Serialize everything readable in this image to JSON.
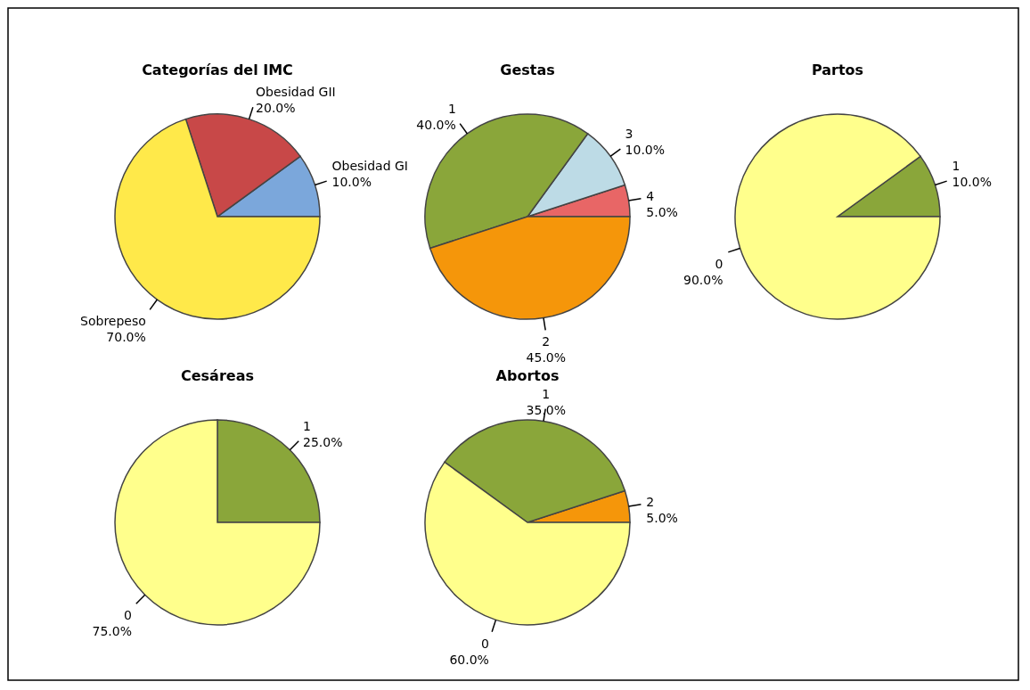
{
  "chart_data": [
    {
      "type": "pie",
      "title": "Categorías del IMC",
      "categories": [
        "Obesidad GI",
        "Obesidad GII",
        "Sobrepeso"
      ],
      "values": [
        10,
        20,
        70
      ],
      "value_labels": [
        "10.0%",
        "20.0%",
        "70.0%"
      ],
      "colors": [
        "#7ba7db",
        "#c84848",
        "#ffe94a"
      ]
    },
    {
      "type": "pie",
      "title": "Gestas",
      "categories": [
        "4",
        "3",
        "1",
        "2"
      ],
      "values": [
        5,
        10,
        40,
        45
      ],
      "value_labels": [
        "5.0%",
        "10.0%",
        "40.0%",
        "45.0%"
      ],
      "colors": [
        "#e86666",
        "#bddbe6",
        "#8aa63a",
        "#f5960a"
      ]
    },
    {
      "type": "pie",
      "title": "Partos",
      "categories": [
        "1",
        "0"
      ],
      "values": [
        10,
        90
      ],
      "value_labels": [
        "10.0%",
        "90.0%"
      ],
      "colors": [
        "#8aa63a",
        "#ffff8c"
      ]
    },
    {
      "type": "pie",
      "title": "Cesáreas",
      "categories": [
        "1",
        "0"
      ],
      "values": [
        25,
        75
      ],
      "value_labels": [
        "25.0%",
        "75.0%"
      ],
      "colors": [
        "#8aa63a",
        "#ffff8c"
      ]
    },
    {
      "type": "pie",
      "title": "Abortos",
      "categories": [
        "2",
        "1",
        "0"
      ],
      "values": [
        5,
        35,
        60
      ],
      "value_labels": [
        "5.0%",
        "35.0%",
        "60.0%"
      ],
      "colors": [
        "#f5960a",
        "#8aa63a",
        "#ffff8c"
      ]
    }
  ]
}
